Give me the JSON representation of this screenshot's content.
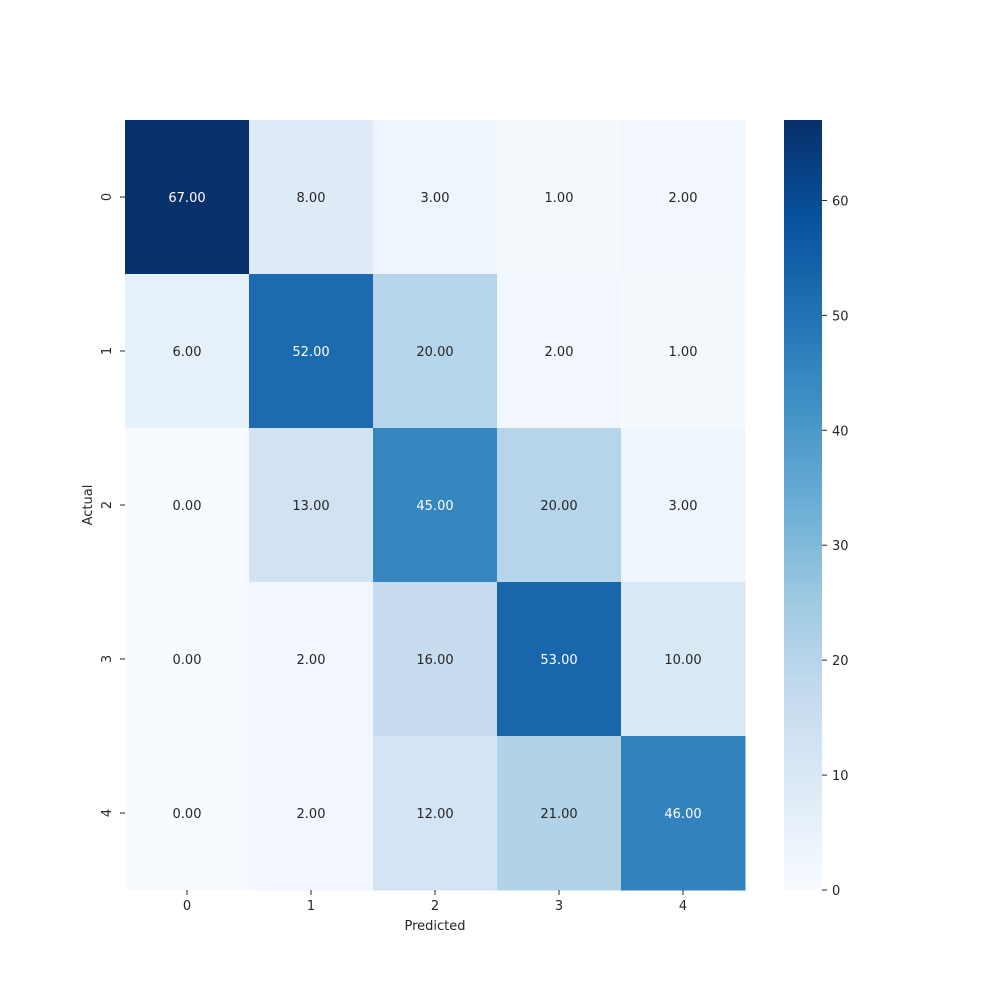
{
  "chart_data": {
    "type": "heatmap",
    "title": "",
    "xlabel": "Predicted",
    "ylabel": "Actual",
    "x_categories": [
      "0",
      "1",
      "2",
      "3",
      "4"
    ],
    "y_categories": [
      "0",
      "1",
      "2",
      "3",
      "4"
    ],
    "values": [
      [
        67,
        8,
        3,
        1,
        2
      ],
      [
        6,
        52,
        20,
        2,
        1
      ],
      [
        0,
        13,
        45,
        20,
        3
      ],
      [
        0,
        2,
        16,
        53,
        10
      ],
      [
        0,
        2,
        12,
        21,
        46
      ]
    ],
    "cell_labels": [
      [
        "67.00",
        "8.00",
        "3.00",
        "1.00",
        "2.00"
      ],
      [
        "6.00",
        "52.00",
        "20.00",
        "2.00",
        "1.00"
      ],
      [
        "0.00",
        "13.00",
        "45.00",
        "20.00",
        "3.00"
      ],
      [
        "0.00",
        "2.00",
        "16.00",
        "53.00",
        "10.00"
      ],
      [
        "0.00",
        "2.00",
        "12.00",
        "21.00",
        "46.00"
      ]
    ],
    "value_range": [
      0,
      67
    ],
    "colormap": "Blues",
    "colormap_stops": [
      "#f7fbff",
      "#deebf7",
      "#c6dbef",
      "#9ecae1",
      "#6baed6",
      "#4292c6",
      "#2171b5",
      "#08519c",
      "#08306b"
    ],
    "colorbar": {
      "ticks": [
        0,
        10,
        20,
        30,
        40,
        50,
        60
      ],
      "tick_labels": [
        "0",
        "10",
        "20",
        "30",
        "40",
        "50",
        "60"
      ]
    },
    "grid": false,
    "legend": "none"
  }
}
